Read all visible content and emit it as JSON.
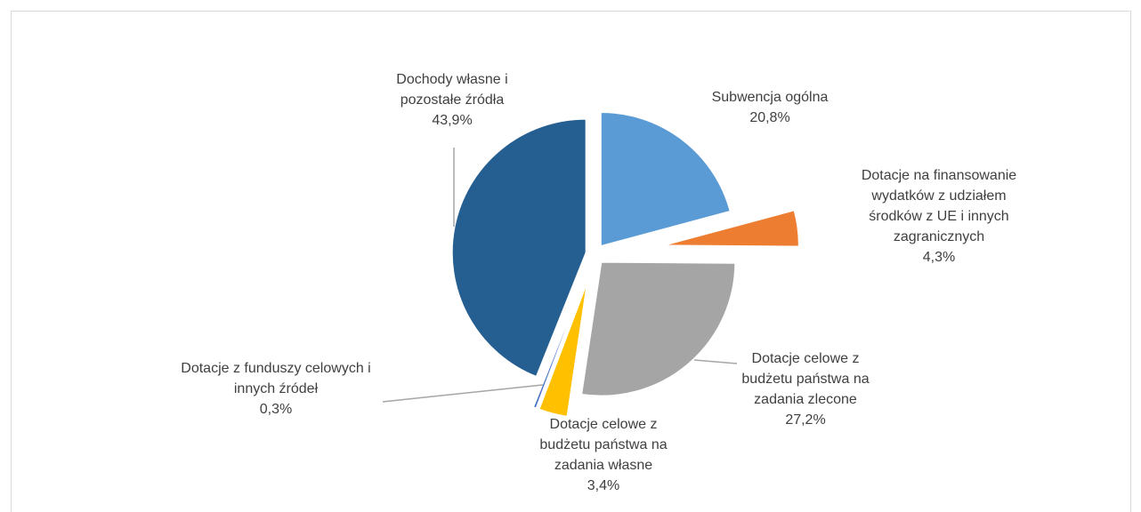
{
  "chart_data": {
    "type": "pie",
    "categories": [
      "Subwencja ogólna",
      "Dotacje na finansowanie wydatków z udziałem środków z UE i innych zagranicznych",
      "Dotacje celowe z budżetu państwa na zadania zlecone",
      "Dotacje celowe z budżetu państwa na zadania własne",
      "Dotacje z funduszy celowych i innych źródeł",
      "Dochody własne i pozostałe źródła"
    ],
    "values": [
      20.8,
      4.3,
      27.2,
      3.4,
      0.3,
      43.9
    ],
    "value_labels": [
      "20,8%",
      "4,3%",
      "27,2%",
      "3,4%",
      "0,3%",
      "43,9%"
    ],
    "colors": [
      "#5b9bd5",
      "#ed7d31",
      "#a5a5a5",
      "#ffc000",
      "#4472c4",
      "#255e91"
    ]
  }
}
